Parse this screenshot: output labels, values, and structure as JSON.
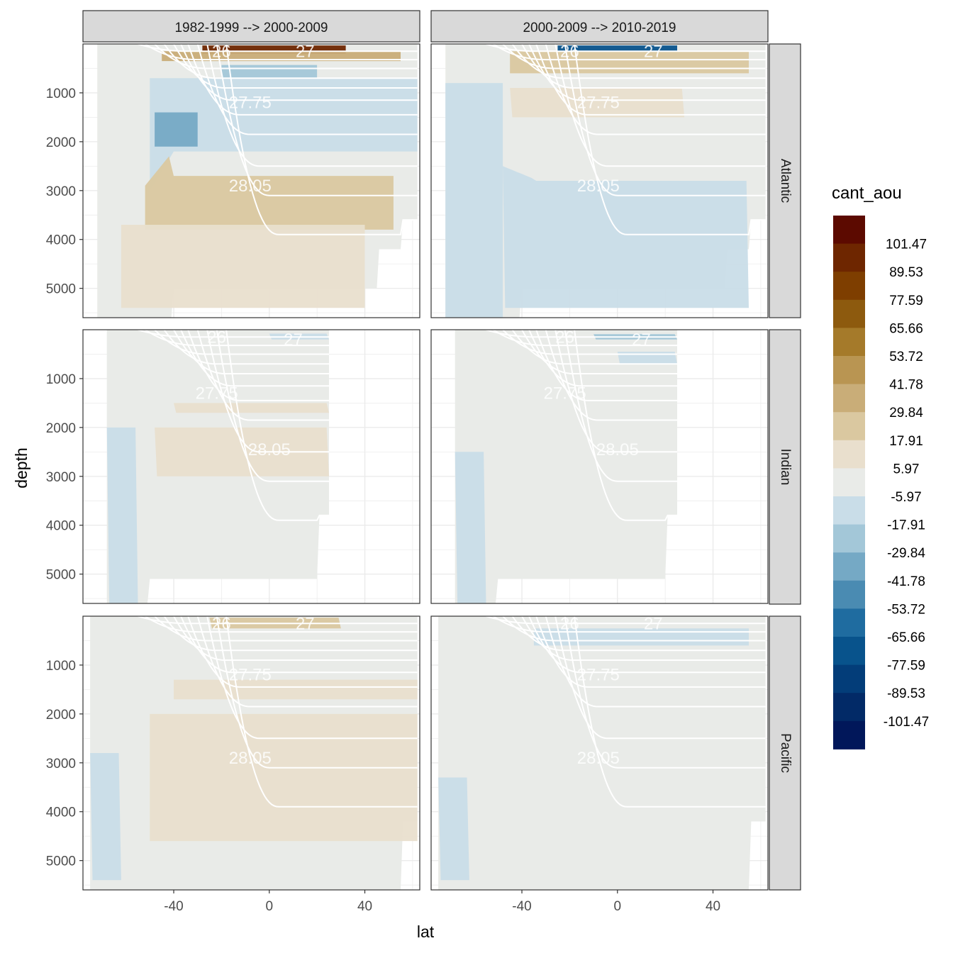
{
  "chart_data": {
    "type": "heatmap",
    "xlabel": "lat",
    "ylabel": "depth",
    "x_ticks": [
      -40,
      0,
      40
    ],
    "y_ticks": [
      1000,
      2000,
      3000,
      4000,
      5000
    ],
    "xlim": [
      -78,
      63
    ],
    "ylim": [
      5600,
      0
    ],
    "columns": [
      "1982-1999 --> 2000-2009",
      "2000-2009 --> 2010-2019"
    ],
    "rows": [
      "Atlantic",
      "Indian",
      "Pacific"
    ],
    "legend": {
      "title": "cant_aou",
      "placement": "right",
      "breaks": [
        "101.47",
        "89.53",
        "77.59",
        "65.66",
        "53.72",
        "41.78",
        "29.84",
        "17.91",
        "5.97",
        "-5.97",
        "-17.91",
        "-29.84",
        "-41.78",
        "-53.72",
        "-65.66",
        "-77.59",
        "-89.53",
        "-101.47"
      ],
      "colors": [
        "#5c0a00",
        "#6e2600",
        "#7e3e00",
        "#8d5a0e",
        "#a57a2a",
        "#b99552",
        "#c9ad78",
        "#dac8a0",
        "#e9dfcd",
        "#e9ebe8",
        "#c9dde8",
        "#a3c7d8",
        "#75a9c5",
        "#4a8bb2",
        "#1f6ca0",
        "#08538c",
        "#033d79",
        "#022a67",
        "#01175a"
      ]
    },
    "contour_labels": [
      "26",
      "27",
      "27.75",
      "28.05"
    ],
    "grid": true
  }
}
